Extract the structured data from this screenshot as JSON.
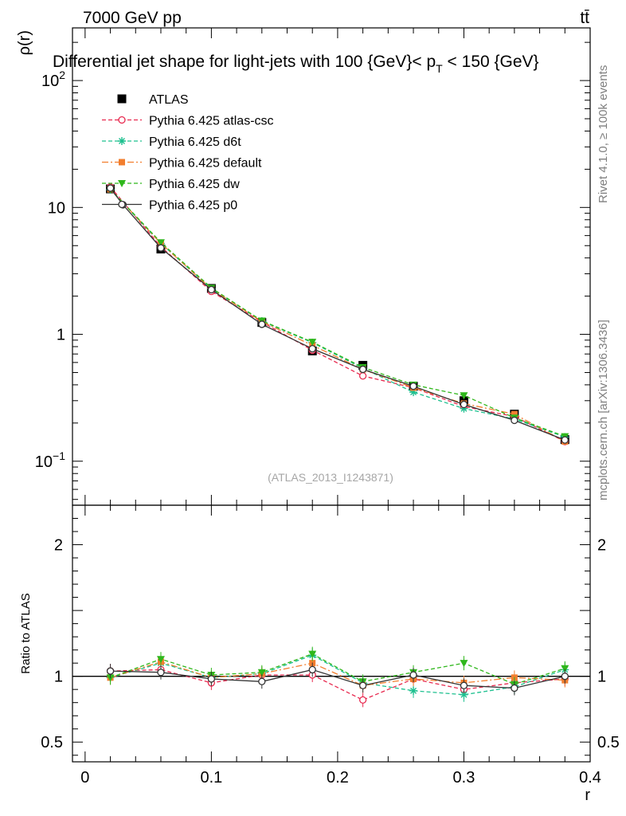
{
  "header": {
    "left": "7000 GeV pp",
    "right": "tt̄"
  },
  "side_labels": {
    "rivet": "Rivet 4.1.0, ≥ 100k events",
    "mcplots": "mcplots.cern.ch [arXiv:1306.3436]"
  },
  "colors": {
    "ATLAS": "#000000",
    "atlas_csc": "#e8294f",
    "d6t": "#1dc08f",
    "default": "#f27e2e",
    "dw": "#2fb71b",
    "p0": "#333333"
  },
  "chart_data": [
    {
      "type": "line",
      "title": "Differential jet shape for light-jets with 100 {GeV}< p_T < 150 {GeV}",
      "title_parts": {
        "main": "Differential jet shape for light-jets with 100 {GeV}< p",
        "sub": "T",
        "tail": " < 150 {GeV}"
      },
      "ylabel": "ρ(r)",
      "yscale": "log",
      "ylim": [
        0.045,
        260
      ],
      "xlim": [
        -0.01,
        0.4
      ],
      "yticks": [
        {
          "value": 100,
          "base": "10",
          "exp": "2"
        },
        {
          "value": 10,
          "base": "10",
          "exp": ""
        },
        {
          "value": 1,
          "base": "1",
          "exp": ""
        },
        {
          "value": 0.1,
          "base": "10",
          "exp": "−1"
        }
      ],
      "watermark": "(ATLAS_2013_I1243871)",
      "series": [
        {
          "name": "ATLAS",
          "key": "ATLAS",
          "style": "data",
          "x": [
            0.02,
            0.06,
            0.1,
            0.14,
            0.18,
            0.22,
            0.26,
            0.3,
            0.34,
            0.38
          ],
          "values": [
            14.0,
            4.7,
            2.3,
            1.24,
            0.74,
            0.57,
            0.39,
            0.3,
            0.235,
            0.148
          ]
        },
        {
          "name": "Pythia 6.425 atlas-csc",
          "key": "atlas_csc",
          "style": "openCircle",
          "dash": "5,3",
          "x": [
            0.02,
            0.06,
            0.1,
            0.14,
            0.18,
            0.22,
            0.26,
            0.3,
            0.34,
            0.38
          ],
          "values": [
            14.5,
            4.9,
            2.18,
            1.25,
            0.75,
            0.47,
            0.38,
            0.27,
            0.225,
            0.143
          ]
        },
        {
          "name": "Pythia 6.425 d6t",
          "key": "d6t",
          "style": "star",
          "dash": "5,3",
          "x": [
            0.02,
            0.06,
            0.1,
            0.14,
            0.18,
            0.22,
            0.26,
            0.3,
            0.34,
            0.38
          ],
          "values": [
            13.8,
            5.2,
            2.28,
            1.27,
            0.86,
            0.54,
            0.35,
            0.26,
            0.215,
            0.155
          ]
        },
        {
          "name": "Pythia 6.425 default",
          "key": "default",
          "style": "square",
          "dash": "8,3,2,3",
          "x": [
            0.02,
            0.06,
            0.1,
            0.14,
            0.18,
            0.22,
            0.26,
            0.3,
            0.34,
            0.38
          ],
          "values": [
            13.9,
            5.2,
            2.28,
            1.26,
            0.82,
            0.53,
            0.38,
            0.285,
            0.235,
            0.143
          ]
        },
        {
          "name": "Pythia 6.425 dw",
          "key": "dw",
          "style": "triangleDown",
          "dash": "5,3",
          "x": [
            0.02,
            0.06,
            0.1,
            0.14,
            0.18,
            0.22,
            0.26,
            0.3,
            0.34,
            0.38
          ],
          "values": [
            13.9,
            5.3,
            2.32,
            1.28,
            0.87,
            0.55,
            0.4,
            0.33,
            0.22,
            0.157
          ]
        },
        {
          "name": "Pythia 6.425 p0",
          "key": "p0",
          "style": "openCircle",
          "dash": "",
          "x": [
            0.02,
            0.03,
            0.06,
            0.1,
            0.14,
            0.18,
            0.22,
            0.26,
            0.3,
            0.34,
            0.38
          ],
          "values": [
            14.2,
            10.5,
            4.8,
            2.25,
            1.2,
            0.77,
            0.53,
            0.39,
            0.28,
            0.21,
            0.147
          ]
        }
      ]
    },
    {
      "type": "line",
      "ylabel": "Ratio to ATLAS",
      "xlabel": "r",
      "ylim": [
        0.35,
        2.3
      ],
      "xlim": [
        -0.01,
        0.4
      ],
      "yticks": [
        {
          "value": 2,
          "label": "2"
        },
        {
          "value": 1,
          "label": "1"
        },
        {
          "value": 0.5,
          "label": "0.5"
        }
      ],
      "xticks": [
        {
          "value": 0,
          "label": "0"
        },
        {
          "value": 0.1,
          "label": "0.1"
        },
        {
          "value": 0.2,
          "label": "0.2"
        },
        {
          "value": 0.3,
          "label": "0.3"
        },
        {
          "value": 0.4,
          "label": "0.4"
        }
      ],
      "series": [
        {
          "name": "Pythia 6.425 atlas-csc",
          "key": "atlas_csc",
          "style": "openCircle",
          "dash": "5,3",
          "x": [
            0.02,
            0.06,
            0.1,
            0.14,
            0.18,
            0.22,
            0.26,
            0.3,
            0.34,
            0.38
          ],
          "values": [
            1.04,
            1.05,
            0.95,
            1.01,
            1.01,
            0.82,
            0.98,
            0.9,
            0.95,
            0.98
          ]
        },
        {
          "name": "Pythia 6.425 d6t",
          "key": "d6t",
          "style": "star",
          "dash": "5,3",
          "x": [
            0.02,
            0.06,
            0.1,
            0.14,
            0.18,
            0.22,
            0.26,
            0.3,
            0.34,
            0.38
          ],
          "values": [
            0.99,
            1.1,
            0.99,
            1.02,
            1.16,
            0.95,
            0.89,
            0.86,
            0.92,
            1.05
          ]
        },
        {
          "name": "Pythia 6.425 default",
          "key": "default",
          "style": "square",
          "dash": "8,3,2,3",
          "x": [
            0.02,
            0.06,
            0.1,
            0.14,
            0.18,
            0.22,
            0.26,
            0.3,
            0.34,
            0.38
          ],
          "values": [
            0.99,
            1.11,
            0.99,
            1.02,
            1.1,
            0.93,
            0.98,
            0.95,
            0.99,
            0.97
          ]
        },
        {
          "name": "Pythia 6.425 dw",
          "key": "dw",
          "style": "triangleDown",
          "dash": "5,3",
          "x": [
            0.02,
            0.06,
            0.1,
            0.14,
            0.18,
            0.22,
            0.26,
            0.3,
            0.34,
            0.38
          ],
          "values": [
            0.99,
            1.13,
            1.01,
            1.03,
            1.17,
            0.96,
            1.03,
            1.1,
            0.94,
            1.06
          ]
        },
        {
          "name": "Pythia 6.425 p0",
          "key": "p0",
          "style": "openCircle",
          "dash": "",
          "x": [
            0.02,
            0.06,
            0.1,
            0.14,
            0.18,
            0.22,
            0.26,
            0.3,
            0.34,
            0.38
          ],
          "values": [
            1.04,
            1.03,
            0.98,
            0.96,
            1.05,
            0.93,
            1.01,
            0.93,
            0.91,
            1.0
          ]
        }
      ]
    }
  ]
}
